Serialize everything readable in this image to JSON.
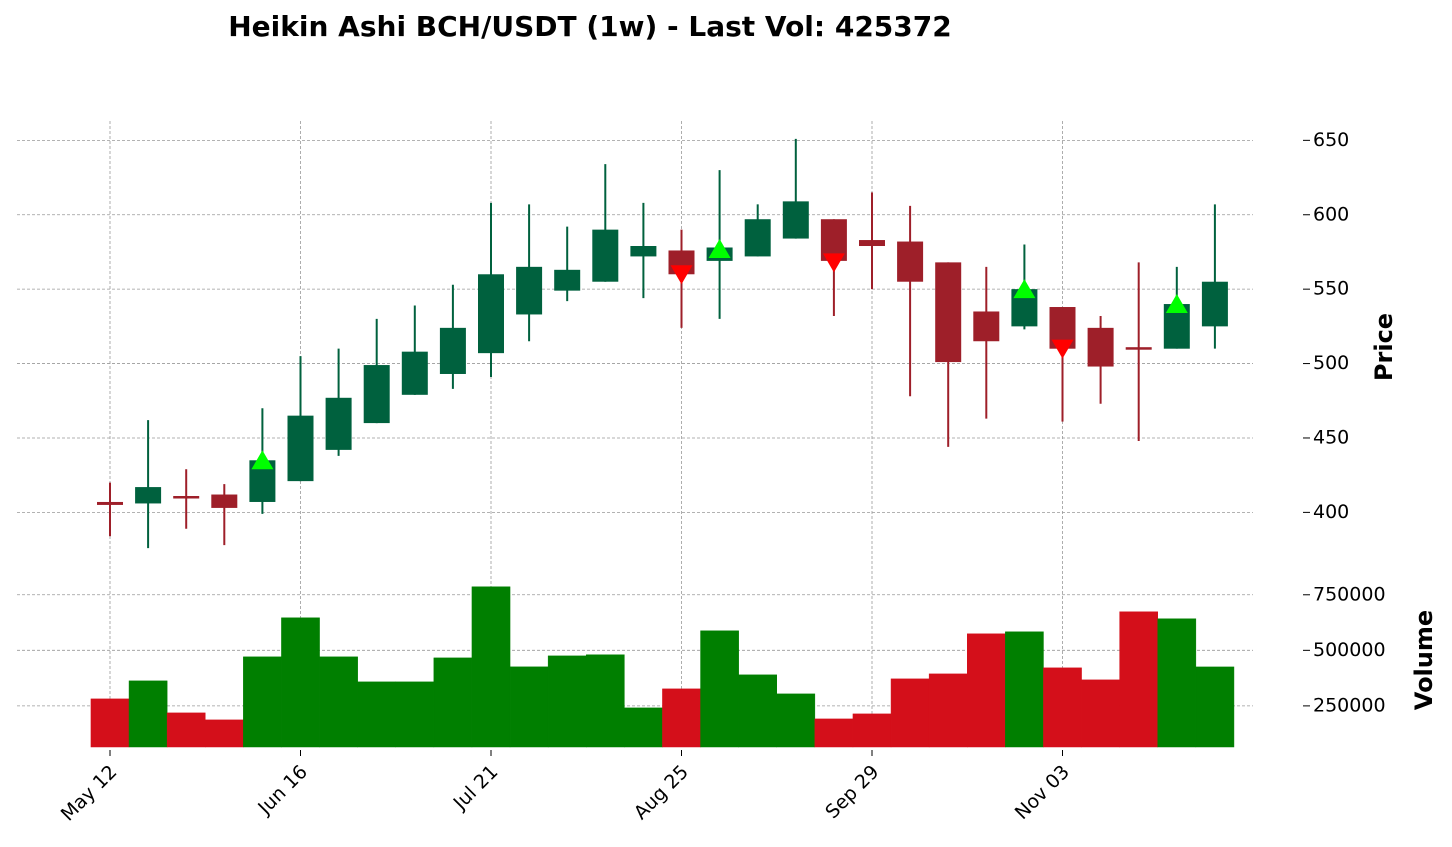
{
  "chart_data": {
    "type": "candlestick",
    "title": "Heikin Ashi BCH/USDT (1w) - Last Vol: 425372",
    "categories": [
      "May 12",
      null,
      null,
      null,
      null,
      "Jun 16",
      null,
      null,
      null,
      null,
      "Jul 21",
      null,
      null,
      null,
      null,
      "Aug 25",
      null,
      null,
      null,
      null,
      "Sep 29",
      null,
      null,
      null,
      null,
      "Nov 03",
      null,
      null,
      null,
      null
    ],
    "open": [
      407,
      406,
      411,
      412,
      407,
      421,
      442,
      460,
      479,
      493,
      507,
      533,
      549,
      555,
      572,
      576,
      569,
      572,
      584,
      597,
      583,
      582,
      568,
      535,
      525,
      538,
      524,
      511,
      510,
      525
    ],
    "high": [
      420,
      462,
      429,
      419,
      470,
      505,
      510,
      530,
      539,
      553,
      608,
      607,
      592,
      634,
      608,
      590,
      630,
      607,
      651,
      597,
      615,
      606,
      568,
      565,
      580,
      538,
      532,
      568,
      565,
      607
    ],
    "low": [
      384,
      376,
      389,
      378,
      399,
      421,
      438,
      460,
      479,
      483,
      491,
      515,
      542,
      555,
      544,
      524,
      530,
      572,
      584,
      532,
      550,
      478,
      444,
      463,
      523,
      461,
      473,
      448,
      510,
      510
    ],
    "close": [
      405,
      417,
      410,
      403,
      435,
      465,
      477,
      499,
      508,
      524,
      560,
      565,
      563,
      590,
      579,
      560,
      578,
      597,
      609,
      569,
      579,
      555,
      501,
      515,
      550,
      510,
      498,
      510,
      540,
      555
    ],
    "up_color": "#00613e",
    "down_color": "#9e1f29",
    "ylabel": "Price",
    "ylim": [
      368,
      663
    ],
    "yticks": [
      400,
      450,
      500,
      550,
      600,
      650
    ],
    "grid": true,
    "signals": {
      "buy": [
        null,
        null,
        null,
        null,
        435,
        null,
        null,
        null,
        null,
        null,
        null,
        null,
        null,
        null,
        null,
        null,
        577,
        null,
        null,
        null,
        null,
        null,
        null,
        null,
        550,
        null,
        null,
        null,
        540,
        null
      ],
      "sell": [
        null,
        null,
        null,
        null,
        null,
        null,
        null,
        null,
        null,
        null,
        null,
        null,
        null,
        null,
        null,
        560,
        null,
        null,
        null,
        568,
        null,
        null,
        null,
        null,
        null,
        510,
        null,
        null,
        null,
        null
      ],
      "buy_color": "#00ff00",
      "sell_color": "#ff0000"
    },
    "volume": {
      "ylabel": "Volume",
      "values": [
        281500,
        362600,
        218500,
        187000,
        470700,
        646400,
        470700,
        358100,
        358100,
        466000,
        786000,
        425700,
        475000,
        480000,
        241000,
        326600,
        587900,
        389700,
        304000,
        191400,
        214000,
        371600,
        394000,
        574400,
        583400,
        421200,
        367100,
        673500,
        642000,
        425372
      ],
      "up_color": "#007f00",
      "down_color": "#d40f1a",
      "ylim": [
        65000,
        830000
      ],
      "yticks": [
        250000,
        500000,
        750000
      ]
    }
  }
}
